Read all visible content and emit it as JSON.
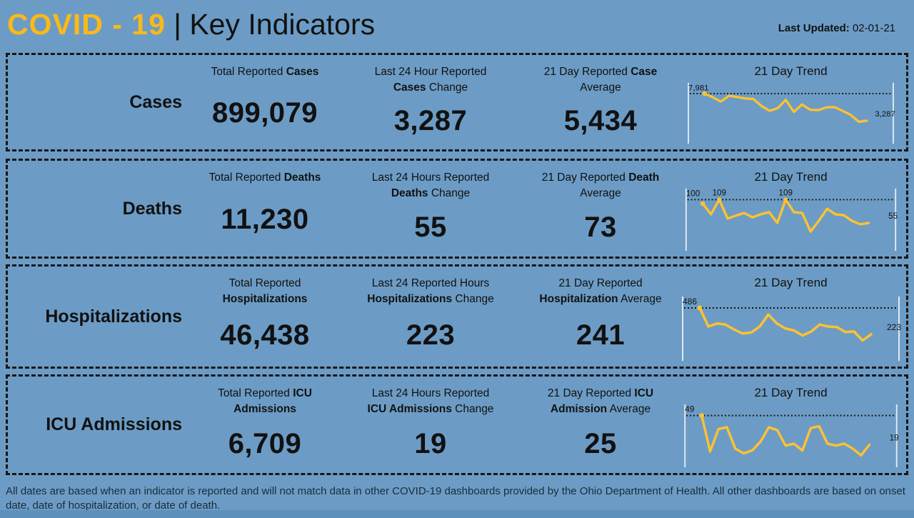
{
  "page": {
    "title_accent": "COVID - 19",
    "title_rest": "| Key Indicators",
    "last_updated_label": "Last Updated:",
    "last_updated_value": "02-01-21",
    "footer": "All dates are based when an indicator is reported and will not match data in other COVID-19 dashboards provided by the Ohio Department of Health. All other dashboards are based on onset date, date of hospitalization, or date of death."
  },
  "colors": {
    "background": "#6C9CC5",
    "accent_yellow": "#FBB917",
    "line_yellow": "#FFC230",
    "text": "#111111",
    "footer_text": "#1B2B3A",
    "bottom_bar": "#5E90BC",
    "axis_line": "#DFE9F2"
  },
  "rows": [
    {
      "label": "Cases",
      "stats": [
        {
          "label_html": "Total Reported <b>Cases</b>",
          "value": "899,079"
        },
        {
          "label_html": "Last 24 Hour Reported<br><b>Cases</b> Change",
          "value": "3,287"
        },
        {
          "label_html": "21 Day Reported <b>Case</b><br>Average",
          "value": "5,434"
        }
      ]
    },
    {
      "label": "Deaths",
      "stats": [
        {
          "label_html": "Total Reported <b>Deaths</b>",
          "value": "11,230"
        },
        {
          "label_html": "Last 24 Hours Reported<br><b>Deaths</b> Change",
          "value": "55"
        },
        {
          "label_html": "21 Day Reported <b>Death</b><br>Average",
          "value": "73"
        }
      ]
    },
    {
      "label": "Hospitalizations",
      "stats": [
        {
          "label_html": "Total Reported<br><b>Hospitalizations</b>",
          "value": "46,438"
        },
        {
          "label_html": "Last 24 Reported Hours<br><b>Hospitalizations</b> Change",
          "value": "223"
        },
        {
          "label_html": "21 Day Reported<br><b>Hospitalization</b> Average",
          "value": "241"
        }
      ]
    },
    {
      "label": "ICU Admissions",
      "stats": [
        {
          "label_html": "Total Reported <b>ICU</b><br><b>Admissions</b>",
          "value": "6,709"
        },
        {
          "label_html": "Last 24 Hours Reported<br><b>ICU Admissions</b> Change",
          "value": "19"
        },
        {
          "label_html": "21 Day Reported <b>ICU</b><br><b>Admission</b> Average",
          "value": "25"
        }
      ]
    }
  ],
  "chart_data": [
    {
      "type": "line",
      "name": "Cases",
      "title": "21 Day Trend",
      "x": "21 daily reports (oldest to newest)",
      "values": [
        7981,
        7350,
        6600,
        7600,
        7400,
        7150,
        7050,
        5850,
        5000,
        5450,
        6900,
        4800,
        6100,
        5200,
        5100,
        5600,
        5650,
        5000,
        4300,
        3100,
        3287
      ],
      "ylim": [
        0,
        7981
      ],
      "reference_line": 7981,
      "labels": {
        "start": "7,981",
        "end": "3,287",
        "peaks": []
      }
    },
    {
      "type": "line",
      "name": "Deaths",
      "title": "21 Day Trend",
      "x": "21 daily reports (oldest to newest)",
      "values": [
        100,
        75,
        109,
        65,
        72,
        78,
        68,
        75,
        80,
        55,
        109,
        80,
        78,
        35,
        60,
        88,
        75,
        73,
        60,
        52,
        55
      ],
      "ylim": [
        0,
        109
      ],
      "reference_line": 109,
      "labels": {
        "start": "100",
        "end": "55",
        "peaks": [
          {
            "text": "109",
            "index": 2
          },
          {
            "text": "109",
            "index": 10
          }
        ]
      }
    },
    {
      "type": "line",
      "name": "Hospitalizations",
      "title": "21 Day Trend",
      "x": "21 daily reports (oldest to newest)",
      "values": [
        486,
        300,
        330,
        320,
        270,
        230,
        240,
        300,
        420,
        330,
        280,
        260,
        210,
        250,
        320,
        300,
        295,
        245,
        250,
        160,
        223
      ],
      "ylim": [
        0,
        486
      ],
      "reference_line": 486,
      "labels": {
        "start": "486",
        "end": "223",
        "peaks": []
      }
    },
    {
      "type": "line",
      "name": "ICU Admissions",
      "title": "21 Day Trend",
      "x": "21 daily reports (oldest to newest)",
      "values": [
        49,
        12,
        35,
        37,
        15,
        10,
        13,
        22,
        37,
        34,
        18,
        20,
        13,
        36,
        38,
        20,
        18,
        20,
        15,
        8,
        19
      ],
      "ylim": [
        0,
        49
      ],
      "reference_line": 49,
      "labels": {
        "start": "49",
        "end": "19",
        "peaks": []
      }
    }
  ]
}
